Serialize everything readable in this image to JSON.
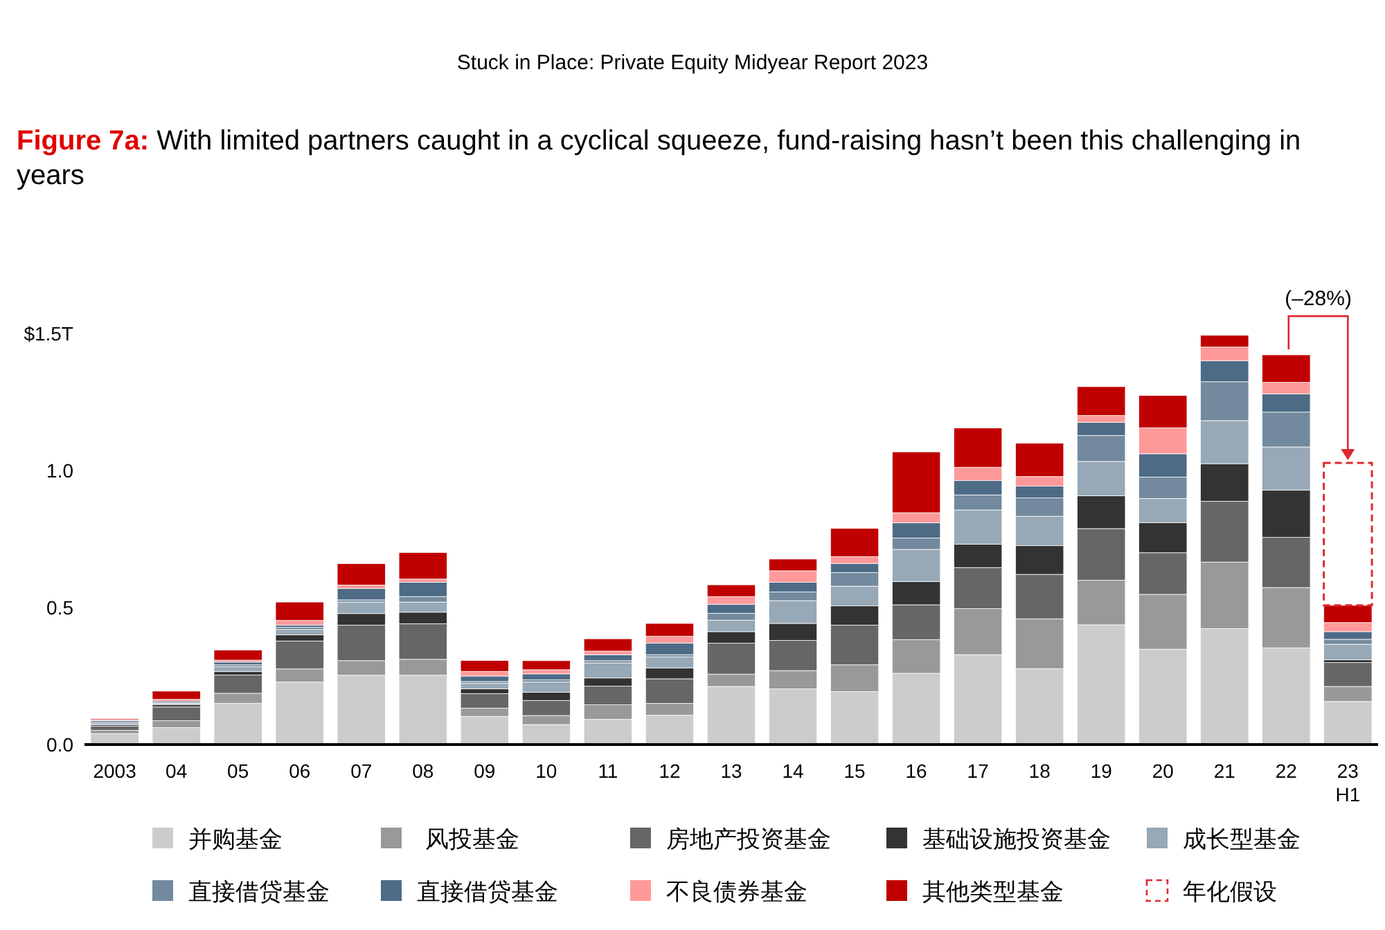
{
  "chart_data": {
    "type": "bar",
    "title": "Stuck in Place: Private Equity Midyear Report 2023",
    "subtitle": "Figure 7a: With limited partners caught in a cyclical squeeze, fund-raising hasn’t been this challenging in years",
    "categories": [
      "2003",
      "04",
      "05",
      "06",
      "07",
      "08",
      "09",
      "10",
      "11",
      "12",
      "13",
      "14",
      "15",
      "16",
      "17",
      "18",
      "19",
      "20",
      "21",
      "22",
      "23\nH1"
    ],
    "stacked": true,
    "ylim": [
      0,
      1.5
    ],
    "yticks": [
      {
        "value": 0,
        "label": "0.0"
      },
      0.5,
      {
        "value": 1,
        "label": "1.0"
      },
      {
        "value": 1.5,
        "label": "$1.5T"
      }
    ],
    "grid": false,
    "legend": "bottom",
    "series": [
      {
        "name": "并购基金",
        "color": "#cccccc",
        "values": [
          0.04,
          0.062,
          0.15,
          0.228,
          0.253,
          0.253,
          0.103,
          0.073,
          0.092,
          0.107,
          0.212,
          0.203,
          0.193,
          0.26,
          0.328,
          0.277,
          0.437,
          0.348,
          0.423,
          0.353,
          0.157
        ]
      },
      {
        "name": "风投基金",
        "color": "#999999",
        "values": [
          0.012,
          0.025,
          0.037,
          0.048,
          0.053,
          0.058,
          0.03,
          0.033,
          0.053,
          0.043,
          0.045,
          0.067,
          0.098,
          0.123,
          0.168,
          0.182,
          0.163,
          0.2,
          0.243,
          0.22,
          0.055
        ]
      },
      {
        "name": "房地产投资基金",
        "color": "#666666",
        "values": [
          0.015,
          0.05,
          0.067,
          0.102,
          0.13,
          0.13,
          0.053,
          0.055,
          0.068,
          0.09,
          0.113,
          0.11,
          0.145,
          0.127,
          0.15,
          0.162,
          0.188,
          0.152,
          0.222,
          0.183,
          0.087
        ]
      },
      {
        "name": "基础设施投资基金",
        "color": "#333333",
        "values": [
          0.005,
          0.008,
          0.012,
          0.022,
          0.042,
          0.042,
          0.017,
          0.03,
          0.03,
          0.04,
          0.042,
          0.062,
          0.07,
          0.085,
          0.085,
          0.105,
          0.12,
          0.11,
          0.137,
          0.173,
          0.01
        ]
      },
      {
        "name": "成长型基金",
        "color": "#97a8b6",
        "values": [
          0.005,
          0.005,
          0.018,
          0.02,
          0.042,
          0.037,
          0.02,
          0.037,
          0.055,
          0.04,
          0.042,
          0.083,
          0.072,
          0.117,
          0.125,
          0.107,
          0.125,
          0.088,
          0.157,
          0.157,
          0.057
        ]
      },
      {
        "name": "直接借贷基金",
        "color": "#738a9e",
        "values": [
          0.005,
          0.003,
          0.007,
          0.008,
          0.008,
          0.02,
          0.007,
          0.008,
          0.008,
          0.008,
          0.025,
          0.032,
          0.05,
          0.042,
          0.055,
          0.067,
          0.095,
          0.078,
          0.142,
          0.127,
          0.018
        ]
      },
      {
        "name": "直接借贷基金",
        "color": "#4e6b86",
        "values": [
          0.005,
          0.005,
          0.01,
          0.008,
          0.042,
          0.052,
          0.02,
          0.022,
          0.022,
          0.042,
          0.033,
          0.035,
          0.033,
          0.055,
          0.053,
          0.043,
          0.048,
          0.085,
          0.077,
          0.067,
          0.028
        ]
      },
      {
        "name": "不良债券基金",
        "color": "#ff9999",
        "values": [
          0.004,
          0.007,
          0.007,
          0.017,
          0.012,
          0.012,
          0.017,
          0.015,
          0.013,
          0.025,
          0.028,
          0.042,
          0.025,
          0.037,
          0.048,
          0.035,
          0.025,
          0.095,
          0.05,
          0.042,
          0.033
        ]
      },
      {
        "name": "其他类型基金",
        "color": "#c00000",
        "values": [
          0.004,
          0.03,
          0.037,
          0.067,
          0.078,
          0.097,
          0.04,
          0.033,
          0.045,
          0.047,
          0.043,
          0.043,
          0.103,
          0.222,
          0.143,
          0.122,
          0.105,
          0.118,
          0.043,
          0.1,
          0.063
        ]
      },
      {
        "name": "年化假设",
        "color": "#e0282e",
        "line_style": "dashed",
        "values": [
          null,
          null,
          null,
          null,
          null,
          null,
          null,
          null,
          null,
          null,
          null,
          null,
          null,
          null,
          null,
          null,
          null,
          null,
          null,
          null,
          0.52
        ]
      }
    ],
    "annotations": [
      "(–28%)"
    ]
  }
}
